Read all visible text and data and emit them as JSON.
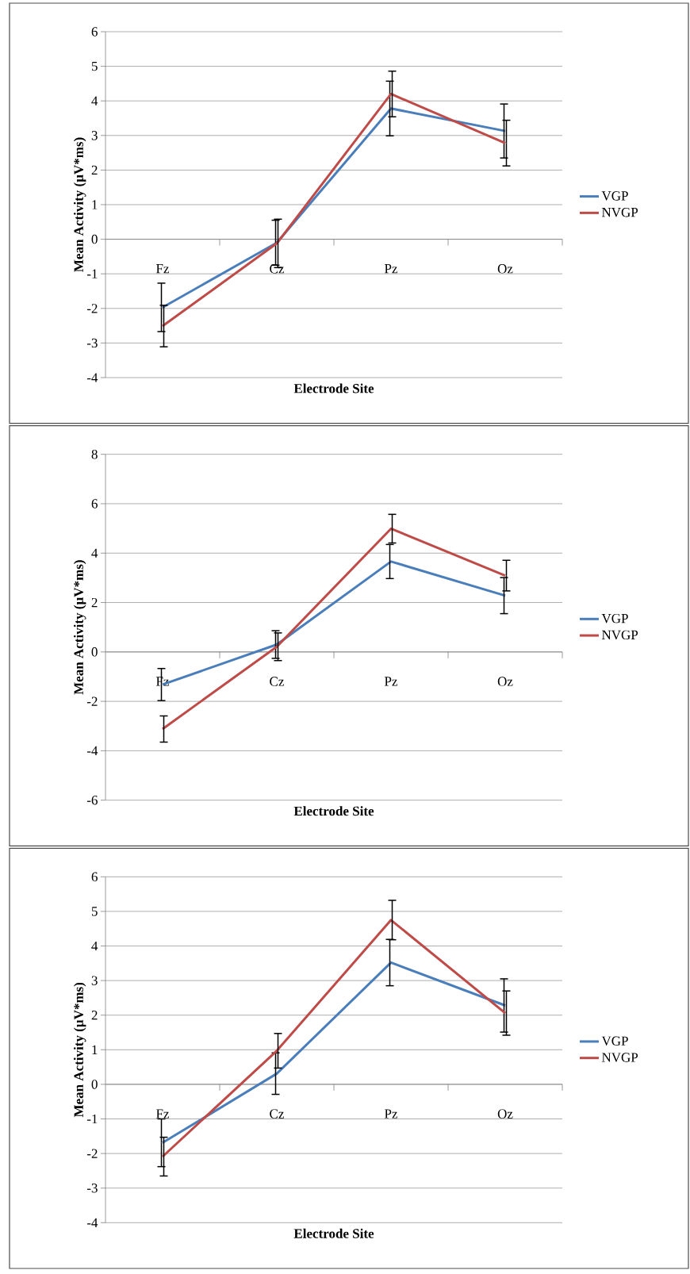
{
  "chart_data": [
    {
      "type": "line",
      "xlabel": "Electrode Site",
      "ylabel": "Mean Activity (µV*ms)",
      "categories": [
        "Fz",
        "Cz",
        "Pz",
        "Oz"
      ],
      "ylim": [
        -4,
        6
      ],
      "yticks": [
        -4,
        -3,
        -2,
        -1,
        0,
        1,
        2,
        3,
        4,
        5,
        6
      ],
      "grid": "y",
      "legend": "right",
      "series": [
        {
          "name": "VGP",
          "color": "#4a7ebb",
          "values": [
            -1.97,
            -0.1,
            3.78,
            3.13
          ],
          "errors": [
            0.7,
            0.65,
            0.79,
            0.78
          ]
        },
        {
          "name": "NVGP",
          "color": "#be4b48",
          "values": [
            -2.51,
            -0.12,
            4.2,
            2.78
          ],
          "errors": [
            0.6,
            0.7,
            0.66,
            0.66
          ]
        }
      ]
    },
    {
      "type": "line",
      "xlabel": "Electrode Site",
      "ylabel": "Mean Activity (µV*ms)",
      "categories": [
        "Fz",
        "Cz",
        "Pz",
        "Oz"
      ],
      "ylim": [
        -6,
        8
      ],
      "yticks": [
        -6,
        -4,
        -2,
        0,
        2,
        4,
        6,
        8
      ],
      "grid": "y",
      "legend": "right",
      "series": [
        {
          "name": "VGP",
          "color": "#4a7ebb",
          "values": [
            -1.32,
            0.3,
            3.66,
            2.28
          ],
          "errors": [
            0.65,
            0.56,
            0.69,
            0.73
          ]
        },
        {
          "name": "NVGP",
          "color": "#be4b48",
          "values": [
            -3.12,
            0.21,
            4.99,
            3.09
          ],
          "errors": [
            0.53,
            0.56,
            0.58,
            0.62
          ]
        }
      ]
    },
    {
      "type": "line",
      "xlabel": "Electrode Site",
      "ylabel": "Mean Activity (µV*ms)",
      "categories": [
        "Fz",
        "Cz",
        "Pz",
        "Oz"
      ],
      "ylim": [
        -4,
        6
      ],
      "yticks": [
        -4,
        -3,
        -2,
        -1,
        0,
        1,
        2,
        3,
        4,
        5,
        6
      ],
      "grid": "y",
      "legend": "right",
      "series": [
        {
          "name": "VGP",
          "color": "#4a7ebb",
          "values": [
            -1.69,
            0.31,
            3.52,
            2.28
          ],
          "errors": [
            0.69,
            0.6,
            0.67,
            0.77
          ]
        },
        {
          "name": "NVGP",
          "color": "#be4b48",
          "values": [
            -2.09,
            0.97,
            4.75,
            2.06
          ],
          "errors": [
            0.56,
            0.5,
            0.57,
            0.64
          ]
        }
      ]
    }
  ]
}
